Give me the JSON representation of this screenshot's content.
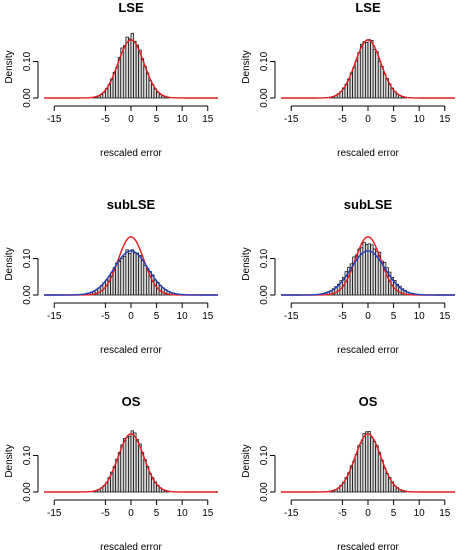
{
  "chart_data": [
    {
      "type": "histogram",
      "title": "LSE",
      "xlabel": "rescaled error",
      "ylabel": "Density",
      "xlim": [
        -17,
        17
      ],
      "ylim": [
        0,
        0.17
      ],
      "xticks": [
        -15,
        -5,
        0,
        5,
        10,
        15
      ],
      "xtick_labels": [
        "-15",
        "-5",
        "0",
        "5",
        "10",
        "15"
      ],
      "yticks": [
        0,
        0.1
      ],
      "ytick_labels": [
        "0.00",
        "0.10"
      ],
      "hist_sd": 2.4,
      "hist_max_density": 0.17,
      "curves": [
        {
          "name": "normal",
          "color": "#e41a1c",
          "sd": 2.5
        }
      ]
    },
    {
      "type": "histogram",
      "title": "LSE",
      "xlabel": "rescaled error",
      "ylabel": "Density",
      "xlim": [
        -17,
        17
      ],
      "ylim": [
        0,
        0.17
      ],
      "xticks": [
        -15,
        -5,
        0,
        5,
        10,
        15
      ],
      "xtick_labels": [
        "-15",
        "-5",
        "0",
        "5",
        "10",
        "15"
      ],
      "yticks": [
        0,
        0.1
      ],
      "ytick_labels": [
        "0.00",
        "0.10"
      ],
      "hist_sd": 2.5,
      "hist_max_density": 0.16,
      "curves": [
        {
          "name": "normal",
          "color": "#e41a1c",
          "sd": 2.5
        }
      ]
    },
    {
      "type": "histogram",
      "title": "subLSE",
      "xlabel": "rescaled error",
      "ylabel": "Density",
      "xlim": [
        -17,
        17
      ],
      "ylim": [
        0,
        0.17
      ],
      "xticks": [
        -15,
        -5,
        0,
        5,
        10,
        15
      ],
      "xtick_labels": [
        "-15",
        "-5",
        "0",
        "5",
        "10",
        "15"
      ],
      "yticks": [
        0,
        0.1
      ],
      "ytick_labels": [
        "0.00",
        "0.10"
      ],
      "hist_sd": 3.3,
      "hist_max_density": 0.12,
      "curves": [
        {
          "name": "normal",
          "color": "#e41a1c",
          "sd": 2.5
        },
        {
          "name": "normal-wide",
          "color": "#1f3fbf",
          "sd": 3.3
        }
      ]
    },
    {
      "type": "histogram",
      "title": "subLSE",
      "xlabel": "rescaled error",
      "ylabel": "Density",
      "xlim": [
        -17,
        17
      ],
      "ylim": [
        0,
        0.17
      ],
      "xticks": [
        -15,
        -5,
        0,
        5,
        10,
        15
      ],
      "xtick_labels": [
        "-15",
        "-5",
        "0",
        "5",
        "10",
        "15"
      ],
      "yticks": [
        0,
        0.1
      ],
      "ytick_labels": [
        "0.00",
        "0.10"
      ],
      "hist_sd": 3.3,
      "hist_max_density": 0.14,
      "curves": [
        {
          "name": "normal",
          "color": "#e41a1c",
          "sd": 2.5
        },
        {
          "name": "normal-wide",
          "color": "#1f3fbf",
          "sd": 3.3
        }
      ]
    },
    {
      "type": "histogram",
      "title": "OS",
      "xlabel": "rescaled error",
      "ylabel": "Density",
      "xlim": [
        -17,
        17
      ],
      "ylim": [
        0,
        0.17
      ],
      "xticks": [
        -15,
        -5,
        0,
        5,
        10,
        15
      ],
      "xtick_labels": [
        "-15",
        "-5",
        "0",
        "5",
        "10",
        "15"
      ],
      "yticks": [
        0,
        0.1
      ],
      "ytick_labels": [
        "0.00",
        "0.10"
      ],
      "hist_sd": 2.5,
      "hist_max_density": 0.16,
      "curves": [
        {
          "name": "normal",
          "color": "#e41a1c",
          "sd": 2.5
        }
      ]
    },
    {
      "type": "histogram",
      "title": "OS",
      "xlabel": "rescaled error",
      "ylabel": "Density",
      "xlim": [
        -17,
        17
      ],
      "ylim": [
        0,
        0.17
      ],
      "xticks": [
        -15,
        -5,
        0,
        5,
        10,
        15
      ],
      "xtick_labels": [
        "-15",
        "-5",
        "0",
        "5",
        "10",
        "15"
      ],
      "yticks": [
        0,
        0.1
      ],
      "ytick_labels": [
        "0.00",
        "0.10"
      ],
      "hist_sd": 2.5,
      "hist_max_density": 0.16,
      "curves": [
        {
          "name": "normal",
          "color": "#e41a1c",
          "sd": 2.5
        }
      ]
    }
  ],
  "colors": {
    "bar_fill": "#d9d9d9",
    "bar_stroke": "#000000"
  }
}
